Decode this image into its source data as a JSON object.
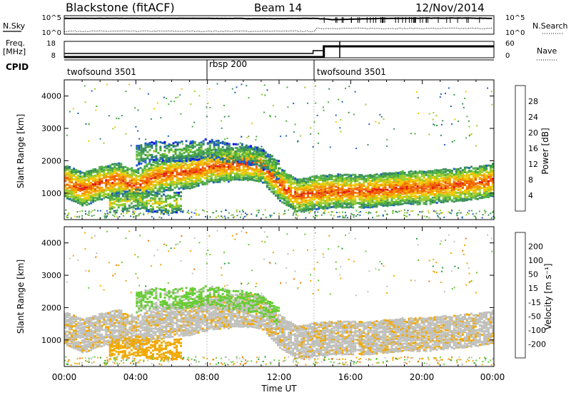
{
  "header": {
    "title": "Blackstone (fitACF)",
    "beam": "Beam 14",
    "date": "12/Nov/2014"
  },
  "noise_panel": {
    "left_label": "N.Sky",
    "left_ticks": [
      "10^5",
      "10^0"
    ],
    "right_label": "N.Search",
    "right_ticks": [
      "10^5",
      "10^0"
    ]
  },
  "freq_panel": {
    "left_label_line1": "Freq.",
    "left_label_line2": "[MHz]",
    "left_ticks": [
      "18",
      "8"
    ],
    "right_label": "Nave",
    "right_ticks": [
      "60",
      "0"
    ]
  },
  "cpid": {
    "label": "CPID",
    "segments": [
      {
        "name": "twofsound 3501",
        "start_hour": 0,
        "end_hour": 8
      },
      {
        "name": "rbsp 200",
        "start_hour": 8,
        "end_hour": 14
      },
      {
        "name": "twofsound 3501",
        "start_hour": 14,
        "end_hour": 24
      }
    ]
  },
  "x_axis": {
    "label": "Time UT",
    "ticks": [
      "00:00",
      "04:00",
      "08:00",
      "12:00",
      "16:00",
      "20:00",
      "00:00"
    ]
  },
  "power_panel": {
    "ylabel": "Slant Range [km]",
    "yticks": [
      "1000",
      "2000",
      "3000",
      "4000"
    ],
    "colorbar_label": "Power [dB]",
    "colorbar_ticks": [
      "4",
      "8",
      "12",
      "16",
      "20",
      "24",
      "28"
    ]
  },
  "velocity_panel": {
    "ylabel": "Slant Range [km]",
    "yticks": [
      "1000",
      "2000",
      "3000",
      "4000"
    ],
    "colorbar_label": "Velocity [m s⁻¹]",
    "colorbar_ticks": [
      "200",
      "100",
      "50",
      "15",
      "-15",
      "-50",
      "-100",
      "-200"
    ]
  },
  "colors": {
    "power_scale": [
      "#1010ee",
      "#1f5fbf",
      "#3a8f5a",
      "#4fb040",
      "#9ccc2a",
      "#f0c800",
      "#f59a00",
      "#f06000",
      "#e01c10"
    ],
    "velocity_scale": [
      "#1818c8",
      "#2a64c4",
      "#2a9a3a",
      "#66cc33",
      "#c0c0bc",
      "#f0a800",
      "#f07800",
      "#e83a18",
      "#d80000"
    ],
    "ground_scatter": "#c0c0bc"
  },
  "chart_data": {
    "type": "heatmap",
    "x_range_hours": [
      0,
      24
    ],
    "y_range_km": [
      180,
      4500
    ],
    "power_db_range": [
      0,
      30
    ],
    "velocity_range": [
      -250,
      250
    ],
    "series": [
      {
        "name": "N.Sky",
        "x_hours": [
          0,
          6,
          8,
          12,
          13.5,
          14,
          15,
          18,
          22,
          24
        ],
        "y_log10": [
          4.6,
          4.6,
          4.6,
          4.5,
          4.6,
          4.6,
          4.2,
          4.6,
          4.7,
          4.6
        ]
      },
      {
        "name": "Freq.",
        "x_hours": [
          0,
          7.9,
          8,
          14,
          14.5,
          24
        ],
        "y_mhz": [
          10.5,
          10.5,
          10.5,
          12,
          15.5,
          15.5
        ]
      },
      {
        "name": "Nave",
        "x_hours": [
          0,
          14,
          14.5,
          24
        ],
        "y": [
          0,
          20,
          40,
          40
        ]
      }
    ],
    "echo_layers": [
      {
        "x_hours": [
          0,
          1,
          2,
          3,
          4,
          5,
          6,
          7,
          8,
          9,
          10,
          11,
          12,
          13,
          14,
          15,
          16,
          17,
          18,
          19,
          20,
          21,
          22,
          23,
          24
        ],
        "range_km": [
          1400,
          1150,
          1350,
          1450,
          1250,
          1550,
          1650,
          1700,
          1850,
          1900,
          1950,
          1900,
          1300,
          950,
          1050,
          1100,
          1100,
          1100,
          1150,
          1200,
          1200,
          1250,
          1300,
          1350,
          1450
        ],
        "power_db": 24,
        "velocity": -15
      },
      {
        "x_hours": [
          4,
          5,
          6,
          7,
          8,
          9,
          10,
          11,
          12
        ],
        "range_km": [
          2200,
          2350,
          2300,
          2350,
          2400,
          2300,
          2250,
          2100,
          1700
        ],
        "power_db": 12,
        "velocity": 40
      },
      {
        "x_hours": [
          2.5,
          3,
          3.5,
          4,
          4.5,
          5,
          5.5,
          6,
          6.5
        ],
        "range_km": [
          700,
          750,
          800,
          850,
          800,
          750,
          700,
          720,
          800
        ],
        "power_db": 16,
        "velocity": -60
      }
    ]
  }
}
